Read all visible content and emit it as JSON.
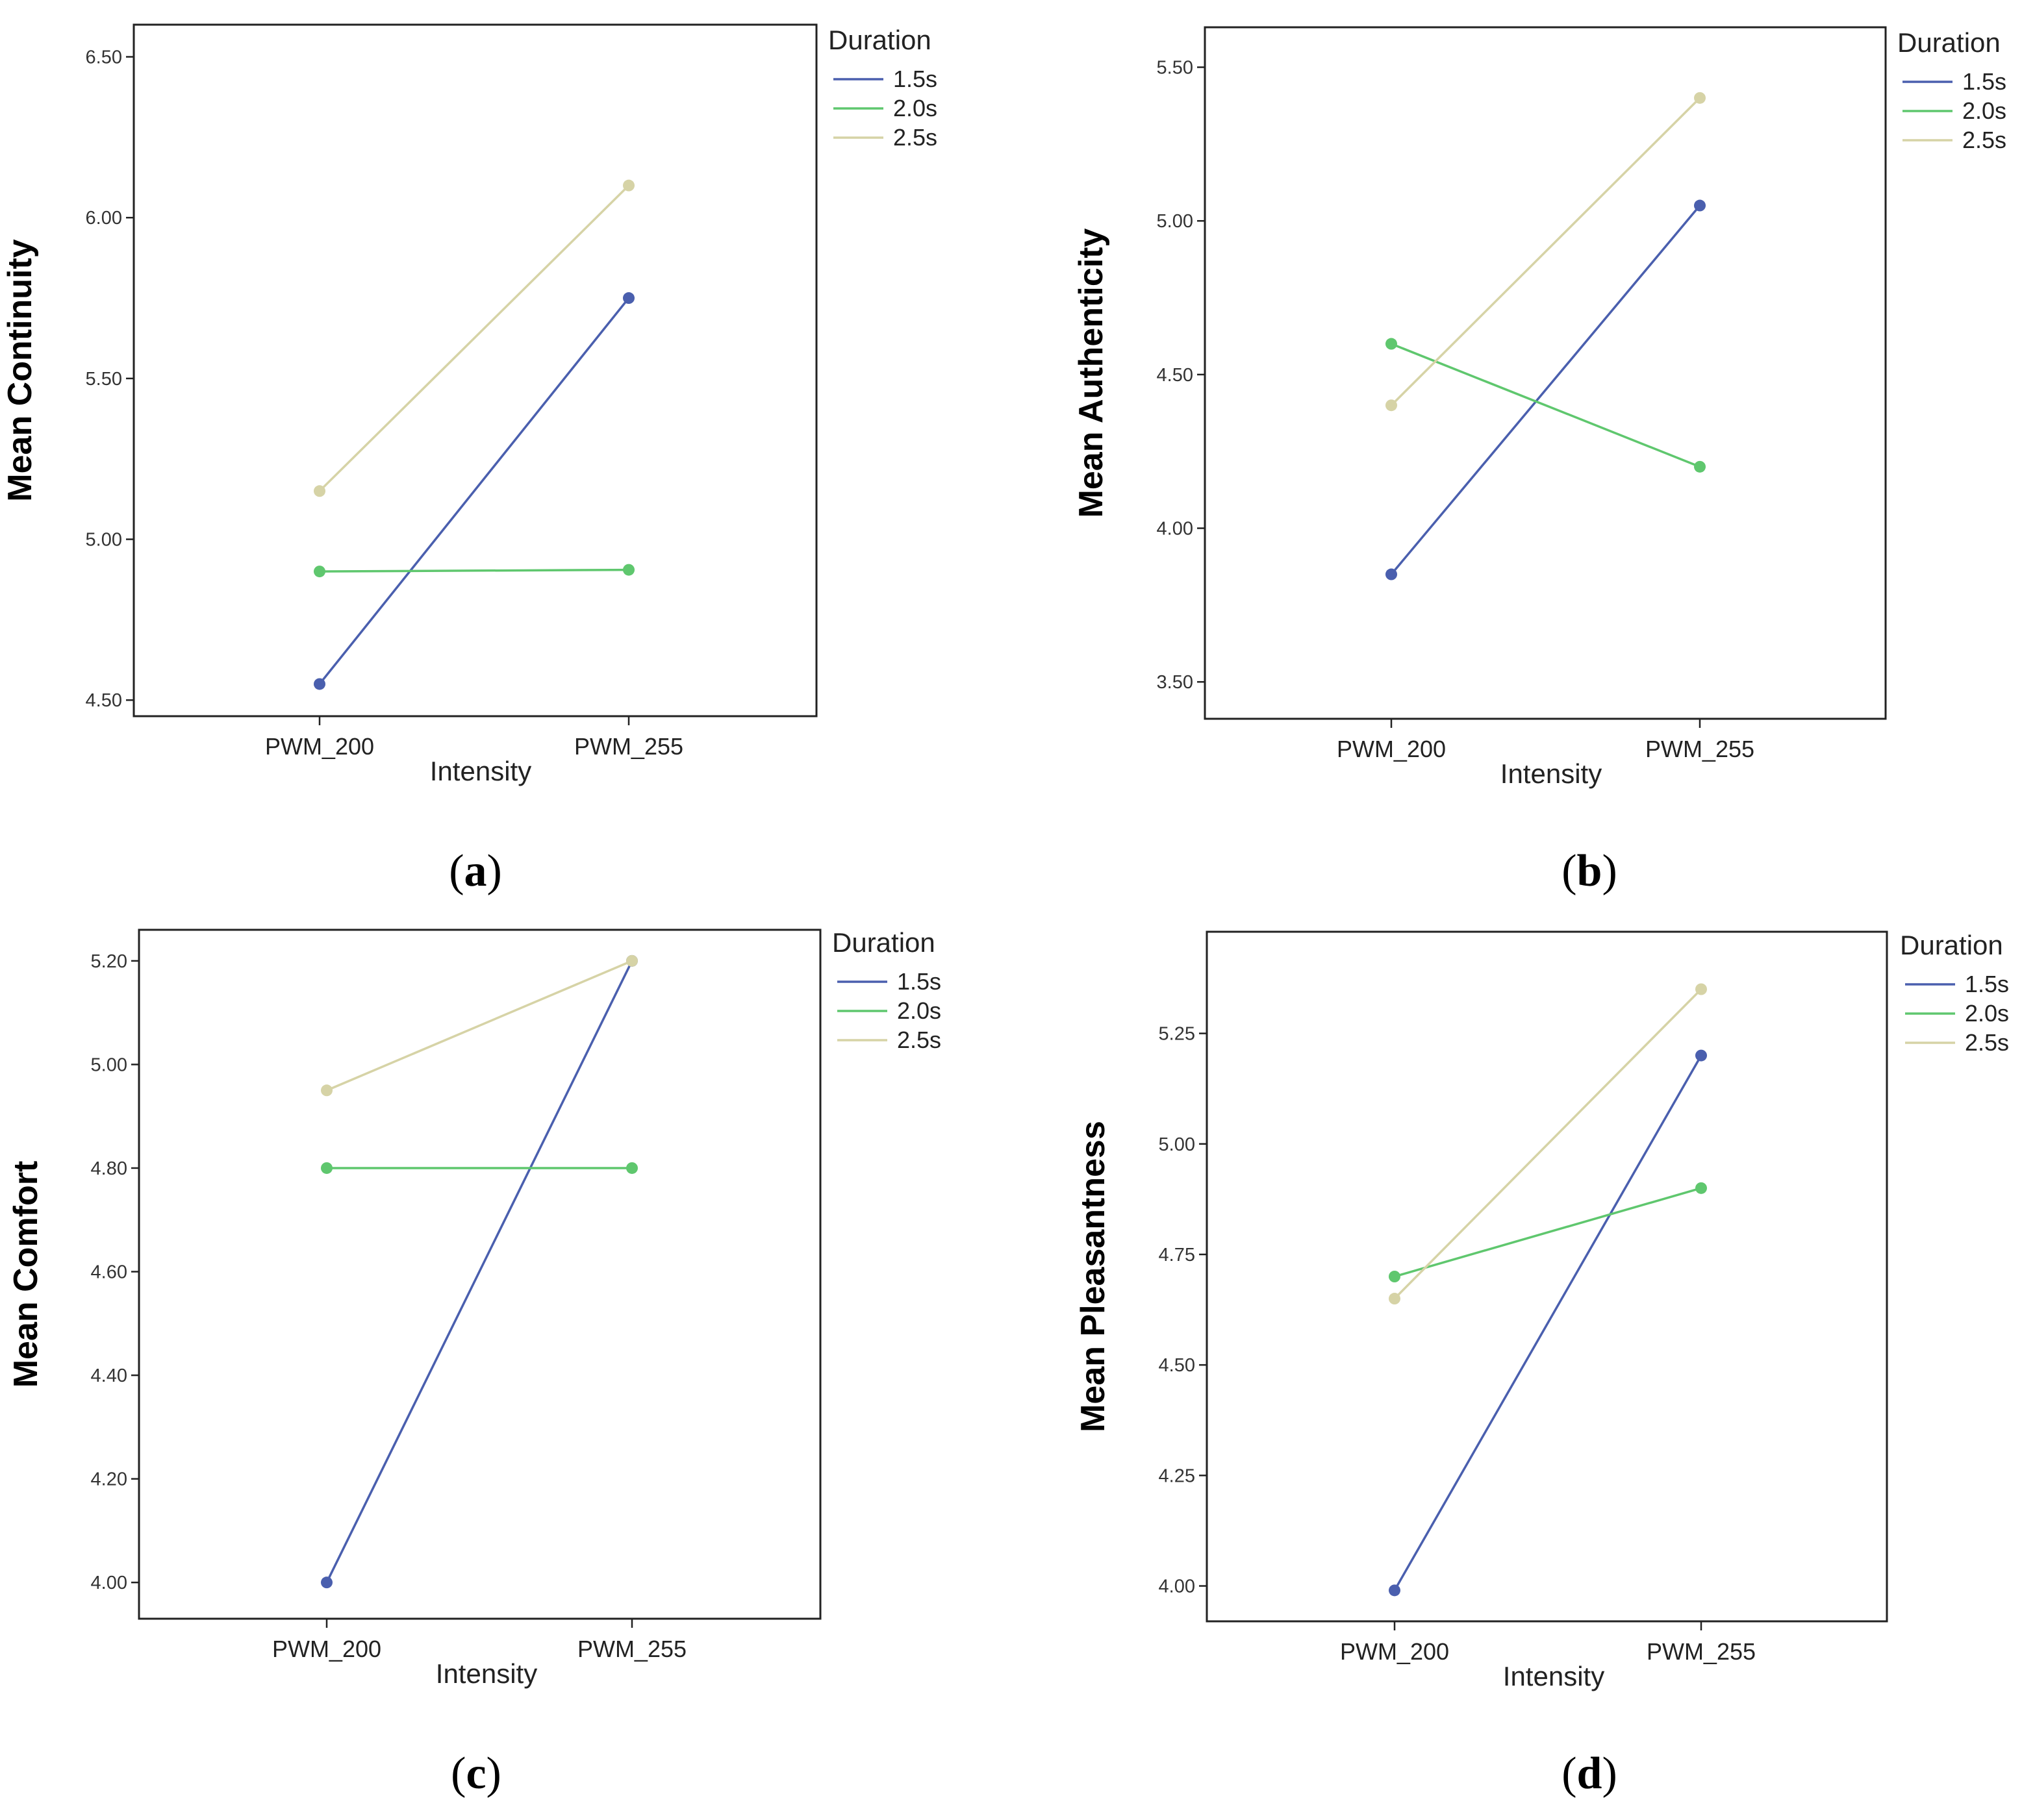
{
  "figure": {
    "colors": {
      "s1": "#4a5fae",
      "s2": "#5fc76e",
      "s3": "#d6d3a6"
    }
  },
  "chart_data": [
    {
      "type": "line",
      "panel": "(a)",
      "categories": [
        "PWM_200",
        "PWM_255"
      ],
      "xlabel": "Intensity",
      "ylabel": "Mean Continuity",
      "legend_title": "Duration",
      "ylim": [
        4.45,
        6.6
      ],
      "yticks": [
        4.5,
        5.0,
        5.5,
        6.0,
        6.5
      ],
      "ytick_labels": [
        "4.50",
        "5.00",
        "5.50",
        "6.00",
        "6.50"
      ],
      "series": [
        {
          "name": "1.5s",
          "values": [
            4.55,
            5.75
          ]
        },
        {
          "name": "2.0s",
          "values": [
            4.9,
            4.905
          ]
        },
        {
          "name": "2.5s",
          "values": [
            5.15,
            6.1
          ]
        }
      ]
    },
    {
      "type": "line",
      "panel": "(b)",
      "categories": [
        "PWM_200",
        "PWM_255"
      ],
      "xlabel": "Intensity",
      "ylabel": "Mean Authenticity",
      "legend_title": "Duration",
      "ylim": [
        3.38,
        5.63
      ],
      "yticks": [
        3.5,
        4.0,
        4.5,
        5.0,
        5.5
      ],
      "ytick_labels": [
        "3.50",
        "4.00",
        "4.50",
        "5.00",
        "5.50"
      ],
      "series": [
        {
          "name": "1.5s",
          "values": [
            3.85,
            5.05
          ]
        },
        {
          "name": "2.0s",
          "values": [
            4.6,
            4.2
          ]
        },
        {
          "name": "2.5s",
          "values": [
            4.4,
            5.4
          ]
        }
      ]
    },
    {
      "type": "line",
      "panel": "(c)",
      "categories": [
        "PWM_200",
        "PWM_255"
      ],
      "xlabel": "Intensity",
      "ylabel": "Mean Comfort",
      "legend_title": "Duration",
      "ylim": [
        3.93,
        5.26
      ],
      "yticks": [
        4.0,
        4.2,
        4.4,
        4.6,
        4.8,
        5.0,
        5.2
      ],
      "ytick_labels": [
        "4.00",
        "4.20",
        "4.40",
        "4.60",
        "4.80",
        "5.00",
        "5.20"
      ],
      "series": [
        {
          "name": "1.5s",
          "values": [
            4.0,
            5.2
          ]
        },
        {
          "name": "2.0s",
          "values": [
            4.8,
            4.8
          ]
        },
        {
          "name": "2.5s",
          "values": [
            4.95,
            5.2
          ]
        }
      ]
    },
    {
      "type": "line",
      "panel": "(d)",
      "categories": [
        "PWM_200",
        "PWM_255"
      ],
      "xlabel": "Intensity",
      "ylabel": "Mean Pleasantness",
      "legend_title": "Duration",
      "ylim": [
        3.92,
        5.48
      ],
      "yticks": [
        4.0,
        4.25,
        4.5,
        4.75,
        5.0,
        5.25
      ],
      "ytick_labels": [
        "4.00",
        "4.25",
        "4.50",
        "4.75",
        "5.00",
        "5.25"
      ],
      "series": [
        {
          "name": "1.5s",
          "values": [
            3.99,
            5.2
          ]
        },
        {
          "name": "2.0s",
          "values": [
            4.7,
            4.9
          ]
        },
        {
          "name": "2.5s",
          "values": [
            4.65,
            5.35
          ]
        }
      ]
    }
  ]
}
